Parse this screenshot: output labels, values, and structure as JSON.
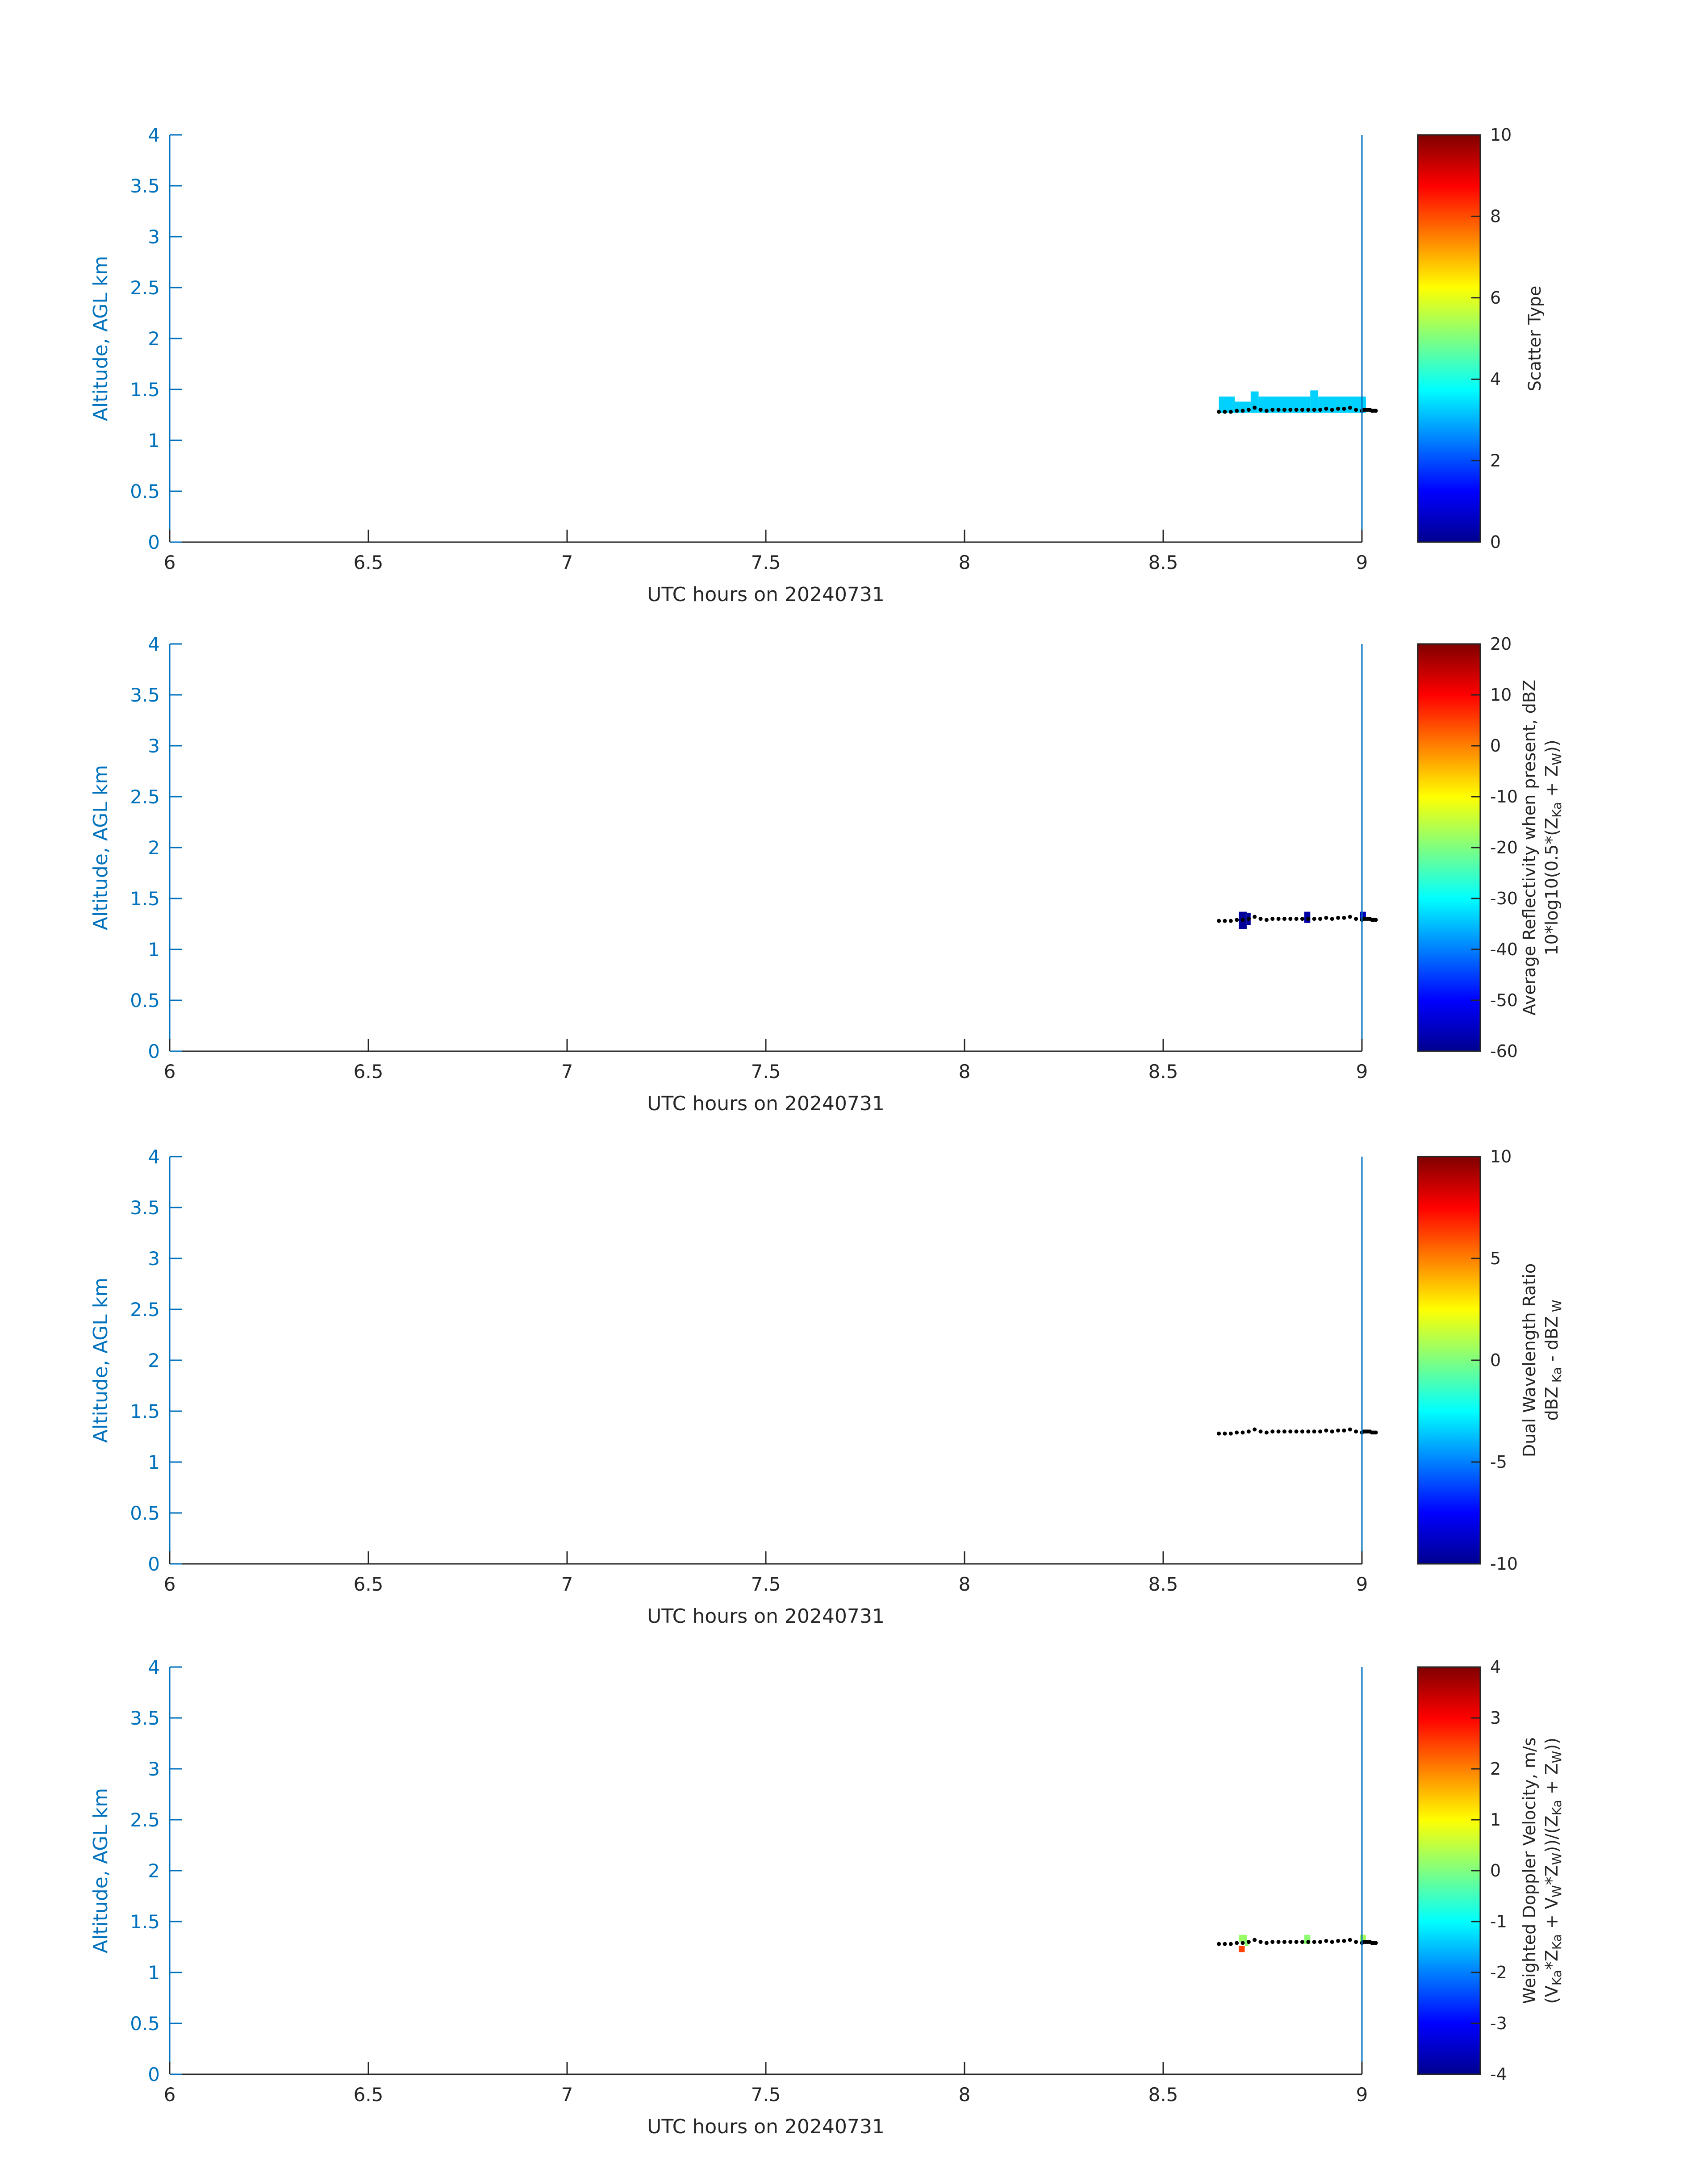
{
  "chart_data": [
    {
      "type": "heatmap",
      "xlabel": "UTC hours on 20240731",
      "ylabel": "Altitude, AGL km",
      "xlim": [
        6,
        9
      ],
      "ylim": [
        0,
        4
      ],
      "xticks": [
        "6",
        "6.5",
        "7",
        "7.5",
        "8",
        "8.5",
        "9"
      ],
      "yticks": [
        "0",
        "0.5",
        "1",
        "1.5",
        "2",
        "2.5",
        "3",
        "3.5",
        "4"
      ],
      "colorbar": {
        "label_lines": [
          [
            {
              "t": "Scatter Type"
            }
          ]
        ],
        "range": [
          0,
          10
        ],
        "ticks": [
          "0",
          "2",
          "4",
          "6",
          "8",
          "10"
        ]
      },
      "cells": [
        {
          "x0": 8.64,
          "x1": 8.68,
          "y0": 1.27,
          "y1": 1.43,
          "value": 3.3
        },
        {
          "x0": 8.68,
          "x1": 8.72,
          "y0": 1.27,
          "y1": 1.38,
          "value": 3.3
        },
        {
          "x0": 8.72,
          "x1": 8.74,
          "y0": 1.27,
          "y1": 1.48,
          "value": 3.3
        },
        {
          "x0": 8.74,
          "x1": 8.87,
          "y0": 1.27,
          "y1": 1.43,
          "value": 3.3
        },
        {
          "x0": 8.87,
          "x1": 8.89,
          "y0": 1.27,
          "y1": 1.49,
          "value": 3.3
        },
        {
          "x0": 8.89,
          "x1": 9.01,
          "y0": 1.27,
          "y1": 1.43,
          "value": 3.3
        }
      ],
      "height_trace_km": [
        1.28,
        1.28,
        1.28,
        1.29,
        1.29,
        1.3,
        1.32,
        1.3,
        1.29,
        1.3,
        1.3,
        1.3,
        1.3,
        1.3,
        1.3,
        1.3,
        1.3,
        1.3,
        1.31,
        1.3,
        1.31,
        1.31,
        1.32,
        1.3,
        1.29,
        1.3,
        1.3,
        1.3,
        1.3,
        1.29,
        1.29,
        1.29
      ],
      "height_trace_x": [
        8.64,
        8.655,
        8.67,
        8.685,
        8.7,
        8.715,
        8.73,
        8.745,
        8.76,
        8.775,
        8.79,
        8.805,
        8.82,
        8.835,
        8.85,
        8.865,
        8.88,
        8.895,
        8.91,
        8.925,
        8.94,
        8.955,
        8.97,
        8.985,
        9.0,
        9.005,
        9.01,
        9.015,
        9.02,
        9.025,
        9.03,
        9.035
      ]
    },
    {
      "type": "heatmap",
      "xlabel": "UTC hours on 20240731",
      "ylabel": "Altitude, AGL km",
      "xlim": [
        6,
        9
      ],
      "ylim": [
        0,
        4
      ],
      "xticks": [
        "6",
        "6.5",
        "7",
        "7.5",
        "8",
        "8.5",
        "9"
      ],
      "yticks": [
        "0",
        "0.5",
        "1",
        "1.5",
        "2",
        "2.5",
        "3",
        "3.5",
        "4"
      ],
      "colorbar": {
        "label_lines": [
          [
            {
              "t": "Average Reflectivity when present, dBZ"
            }
          ],
          [
            {
              "t": "10*log10(0.5*(Z"
            },
            {
              "t": "Ka",
              "sub": true
            },
            {
              "t": " + Z"
            },
            {
              "t": "W",
              "sub": true
            },
            {
              "t": "))"
            }
          ]
        ],
        "range": [
          -60,
          20
        ],
        "ticks": [
          "-60",
          "-50",
          "-40",
          "-30",
          "-20",
          "-10",
          "0",
          "10",
          "20"
        ]
      },
      "cells": [
        {
          "x0": 8.69,
          "x1": 8.71,
          "y0": 1.2,
          "y1": 1.37,
          "value": -59
        },
        {
          "x0": 8.71,
          "x1": 8.72,
          "y0": 1.24,
          "y1": 1.36,
          "value": -59
        },
        {
          "x0": 8.855,
          "x1": 8.87,
          "y0": 1.26,
          "y1": 1.37,
          "value": -58
        },
        {
          "x0": 8.995,
          "x1": 9.01,
          "y0": 1.3,
          "y1": 1.37,
          "value": -56
        }
      ],
      "height_trace_km": [
        1.28,
        1.28,
        1.28,
        1.29,
        1.29,
        1.3,
        1.32,
        1.3,
        1.29,
        1.3,
        1.3,
        1.3,
        1.3,
        1.3,
        1.3,
        1.3,
        1.3,
        1.3,
        1.31,
        1.3,
        1.31,
        1.31,
        1.32,
        1.3,
        1.29,
        1.3,
        1.3,
        1.3,
        1.3,
        1.29,
        1.29,
        1.29
      ],
      "height_trace_x": [
        8.64,
        8.655,
        8.67,
        8.685,
        8.7,
        8.715,
        8.73,
        8.745,
        8.76,
        8.775,
        8.79,
        8.805,
        8.82,
        8.835,
        8.85,
        8.865,
        8.88,
        8.895,
        8.91,
        8.925,
        8.94,
        8.955,
        8.97,
        8.985,
        9.0,
        9.005,
        9.01,
        9.015,
        9.02,
        9.025,
        9.03,
        9.035
      ]
    },
    {
      "type": "heatmap",
      "xlabel": "UTC hours on 20240731",
      "ylabel": "Altitude, AGL km",
      "xlim": [
        6,
        9
      ],
      "ylim": [
        0,
        4
      ],
      "xticks": [
        "6",
        "6.5",
        "7",
        "7.5",
        "8",
        "8.5",
        "9"
      ],
      "yticks": [
        "0",
        "0.5",
        "1",
        "1.5",
        "2",
        "2.5",
        "3",
        "3.5",
        "4"
      ],
      "colorbar": {
        "label_lines": [
          [
            {
              "t": "Dual Wavelength Ratio"
            }
          ],
          [
            {
              "t": "dBZ"
            },
            {
              "t": " Ka",
              "sub": true
            },
            {
              "t": " - dBZ"
            },
            {
              "t": " W",
              "sub": true
            }
          ]
        ],
        "range": [
          -10,
          10
        ],
        "ticks": [
          "-10",
          "-5",
          "0",
          "5",
          "10"
        ]
      },
      "cells": [],
      "height_trace_km": [
        1.28,
        1.28,
        1.28,
        1.29,
        1.29,
        1.3,
        1.32,
        1.3,
        1.29,
        1.3,
        1.3,
        1.3,
        1.3,
        1.3,
        1.3,
        1.3,
        1.3,
        1.3,
        1.31,
        1.3,
        1.31,
        1.31,
        1.32,
        1.3,
        1.29,
        1.3,
        1.3,
        1.3,
        1.3,
        1.29,
        1.29,
        1.29
      ],
      "height_trace_x": [
        8.64,
        8.655,
        8.67,
        8.685,
        8.7,
        8.715,
        8.73,
        8.745,
        8.76,
        8.775,
        8.79,
        8.805,
        8.82,
        8.835,
        8.85,
        8.865,
        8.88,
        8.895,
        8.91,
        8.925,
        8.94,
        8.955,
        8.97,
        8.985,
        9.0,
        9.005,
        9.01,
        9.015,
        9.02,
        9.025,
        9.03,
        9.035
      ]
    },
    {
      "type": "heatmap",
      "xlabel": "UTC hours on 20240731",
      "ylabel": "Altitude, AGL km",
      "xlim": [
        6,
        9
      ],
      "ylim": [
        0,
        4
      ],
      "xticks": [
        "6",
        "6.5",
        "7",
        "7.5",
        "8",
        "8.5",
        "9"
      ],
      "yticks": [
        "0",
        "0.5",
        "1",
        "1.5",
        "2",
        "2.5",
        "3",
        "3.5",
        "4"
      ],
      "colorbar": {
        "label_lines": [
          [
            {
              "t": "Weighted Doppler Velocity, m/s"
            }
          ],
          [
            {
              "t": "(V"
            },
            {
              "t": "Ka",
              "sub": true
            },
            {
              "t": "*Z"
            },
            {
              "t": "Ka",
              "sub": true
            },
            {
              "t": " + V"
            },
            {
              "t": "W",
              "sub": true
            },
            {
              "t": "*Z"
            },
            {
              "t": "W",
              "sub": true
            },
            {
              "t": "))/(Z"
            },
            {
              "t": "Ka",
              "sub": true
            },
            {
              "t": " + Z"
            },
            {
              "t": "W",
              "sub": true
            },
            {
              "t": "))"
            }
          ]
        ],
        "range": [
          -4,
          4
        ],
        "ticks": [
          "-4",
          "-3",
          "-2",
          "-1",
          "0",
          "1",
          "2",
          "3",
          "4"
        ]
      },
      "cells": [
        {
          "x0": 8.69,
          "x1": 8.71,
          "y0": 1.3,
          "y1": 1.37,
          "value": 0.2
        },
        {
          "x0": 8.69,
          "x1": 8.705,
          "y0": 1.2,
          "y1": 1.26,
          "value": 2.5
        },
        {
          "x0": 8.705,
          "x1": 8.715,
          "y0": 1.26,
          "y1": 1.32,
          "value": 0.1
        },
        {
          "x0": 8.855,
          "x1": 8.87,
          "y0": 1.28,
          "y1": 1.37,
          "value": 0.1
        },
        {
          "x0": 8.995,
          "x1": 9.01,
          "y0": 1.3,
          "y1": 1.37,
          "value": 0.3
        }
      ],
      "height_trace_km": [
        1.28,
        1.28,
        1.28,
        1.29,
        1.29,
        1.3,
        1.32,
        1.3,
        1.29,
        1.3,
        1.3,
        1.3,
        1.3,
        1.3,
        1.3,
        1.3,
        1.3,
        1.3,
        1.31,
        1.3,
        1.31,
        1.31,
        1.32,
        1.3,
        1.29,
        1.3,
        1.3,
        1.3,
        1.3,
        1.29,
        1.29,
        1.29
      ],
      "height_trace_x": [
        8.64,
        8.655,
        8.67,
        8.685,
        8.7,
        8.715,
        8.73,
        8.745,
        8.76,
        8.775,
        8.79,
        8.805,
        8.82,
        8.835,
        8.85,
        8.865,
        8.88,
        8.895,
        8.91,
        8.925,
        8.94,
        8.955,
        8.97,
        8.985,
        9.0,
        9.005,
        9.01,
        9.015,
        9.02,
        9.025,
        9.03,
        9.035
      ]
    }
  ],
  "colormap": "jet"
}
